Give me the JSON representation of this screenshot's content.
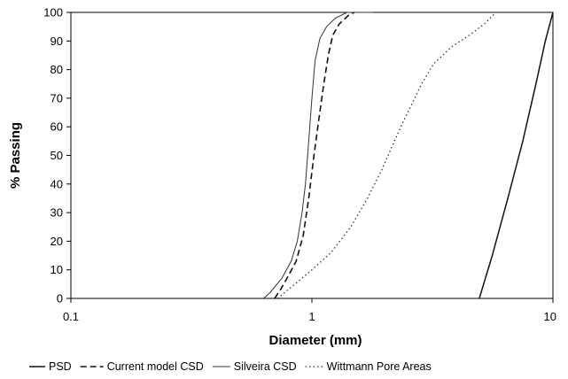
{
  "chart_data": {
    "type": "line",
    "title": "",
    "xlabel": "Diameter (mm)",
    "ylabel": "% Passing",
    "xscale": "log",
    "xlim": [
      0.1,
      10
    ],
    "ylim": [
      0,
      100
    ],
    "xticks": [
      0.1,
      1,
      10
    ],
    "xtick_labels": [
      "0.1",
      "1",
      "10"
    ],
    "yticks": [
      0,
      10,
      20,
      30,
      40,
      50,
      60,
      70,
      80,
      90,
      100
    ],
    "ytick_labels": [
      "0",
      "10",
      "20",
      "30",
      "40",
      "50",
      "60",
      "70",
      "80",
      "90",
      "100"
    ],
    "grid": false,
    "legend_position": "bottom",
    "series": [
      {
        "name": "PSD",
        "style": "solid",
        "x": [
          4.95,
          5.6,
          6.5,
          7.5,
          8.5,
          9.3,
          10
        ],
        "y": [
          0,
          15,
          35,
          55,
          75,
          90,
          100
        ]
      },
      {
        "name": "Current model CSD",
        "style": "dashed",
        "x": [
          0.7,
          0.74,
          0.8,
          0.86,
          0.92,
          0.97,
          1.02,
          1.07,
          1.12,
          1.17,
          1.22,
          1.3,
          1.42,
          1.5
        ],
        "y": [
          0,
          3,
          8,
          13,
          22,
          35,
          50,
          63,
          75,
          85,
          92,
          96,
          99,
          100
        ]
      },
      {
        "name": "Silveira CSD",
        "style": "solid-thin",
        "x": [
          0.63,
          0.67,
          0.75,
          0.82,
          0.87,
          0.91,
          0.94,
          0.97,
          1.0,
          1.03,
          1.08,
          1.15,
          1.25,
          1.4,
          1.8
        ],
        "y": [
          0,
          2,
          7,
          13,
          20,
          30,
          40,
          55,
          70,
          83,
          91,
          95,
          98,
          100,
          100
        ]
      },
      {
        "name": "Wittmann Pore Areas",
        "style": "dotted",
        "x": [
          0.72,
          0.85,
          1.0,
          1.2,
          1.45,
          1.7,
          1.95,
          2.2,
          2.4,
          2.6,
          2.85,
          3.2,
          3.8,
          4.5,
          5.2,
          5.8,
          10
        ],
        "y": [
          0,
          5,
          10,
          16,
          25,
          35,
          45,
          55,
          62,
          68,
          75,
          82,
          88,
          92,
          96,
          100,
          100
        ]
      }
    ]
  }
}
